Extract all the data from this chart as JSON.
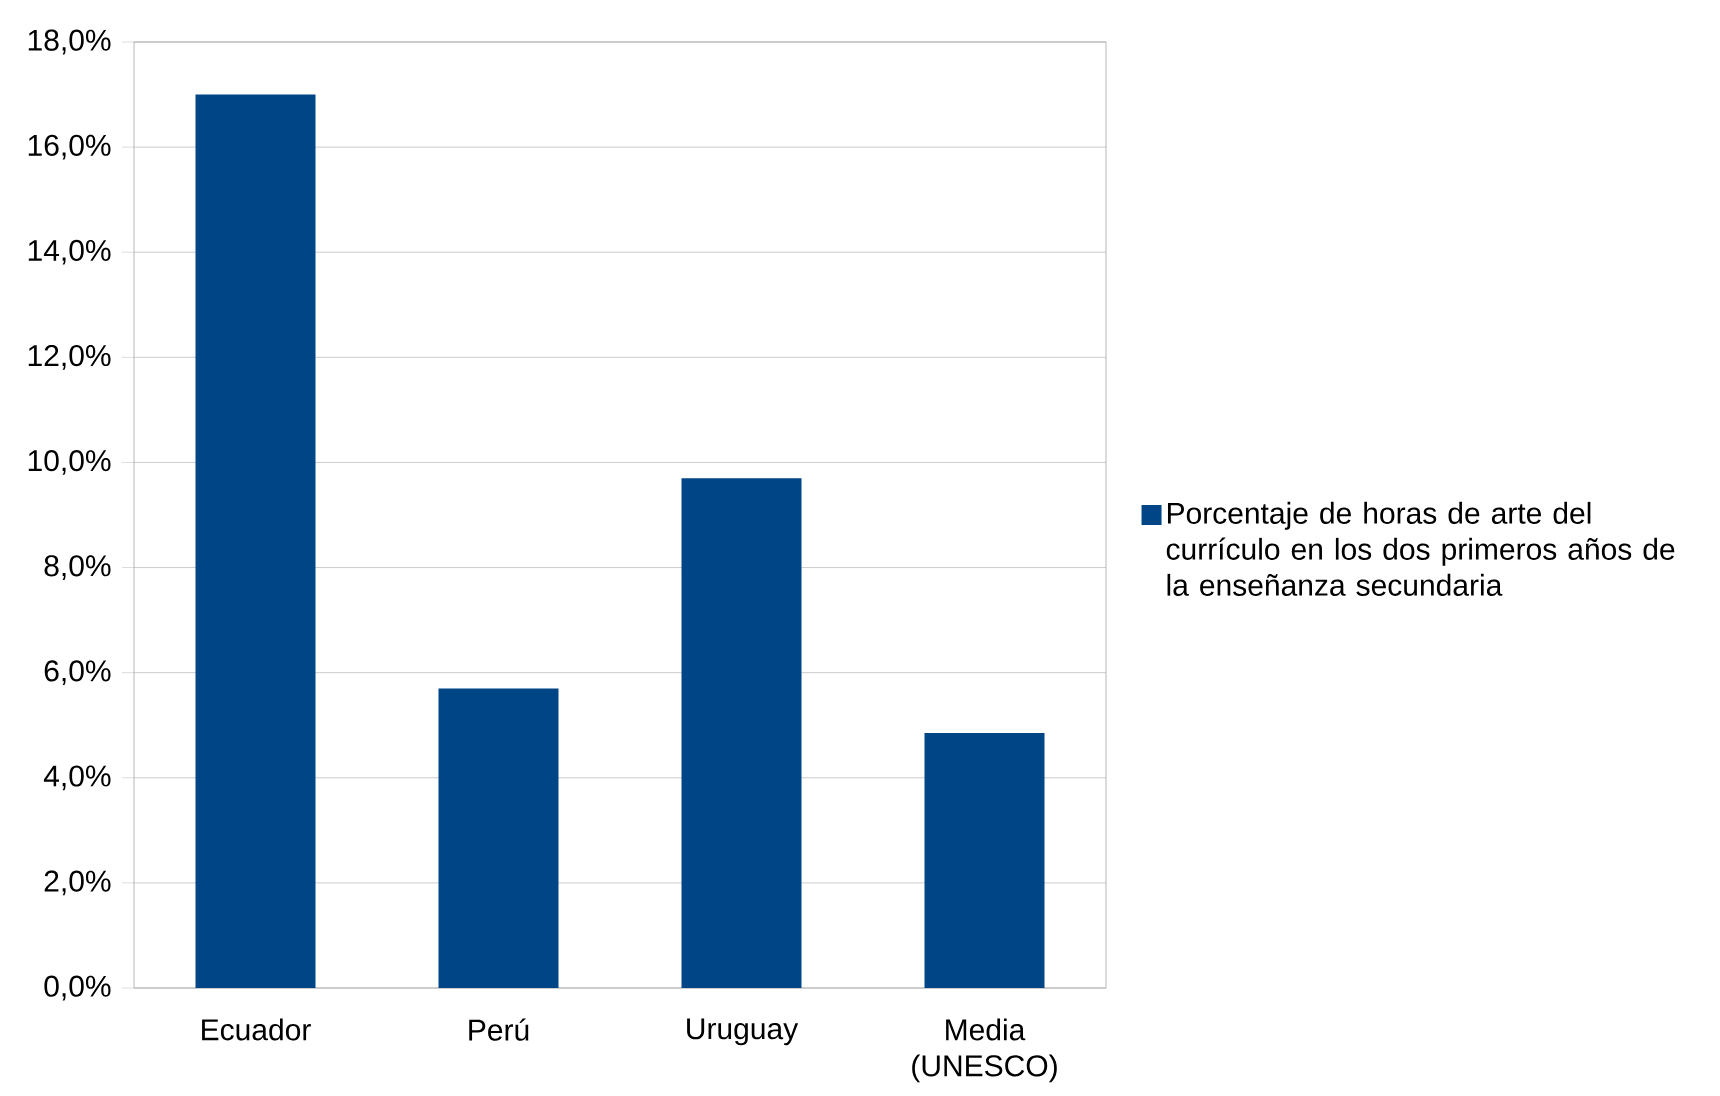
{
  "chart_data": {
    "type": "bar",
    "categories": [
      "Ecuador",
      "Perú",
      "Uruguay",
      "Media (UNESCO)"
    ],
    "series": [
      {
        "name": "Porcentaje de horas de arte del currículo en los dos primeros años de la enseñanza secundaria",
        "color": "#004586",
        "values": [
          17.0,
          5.7,
          9.7,
          4.85
        ]
      }
    ],
    "ylim": [
      0,
      18
    ],
    "yticks": [
      {
        "value": 0,
        "label": "0,0%"
      },
      {
        "value": 2,
        "label": "2,0%"
      },
      {
        "value": 4,
        "label": "4,0%"
      },
      {
        "value": 6,
        "label": "6,0%"
      },
      {
        "value": 8,
        "label": "8,0%"
      },
      {
        "value": 10,
        "label": "10,0%"
      },
      {
        "value": 12,
        "label": "12,0%"
      },
      {
        "value": 14,
        "label": "14,0%"
      },
      {
        "value": 16,
        "label": "16,0%"
      },
      {
        "value": 18,
        "label": "18,0%"
      }
    ],
    "grid": "y",
    "legend": "right"
  }
}
